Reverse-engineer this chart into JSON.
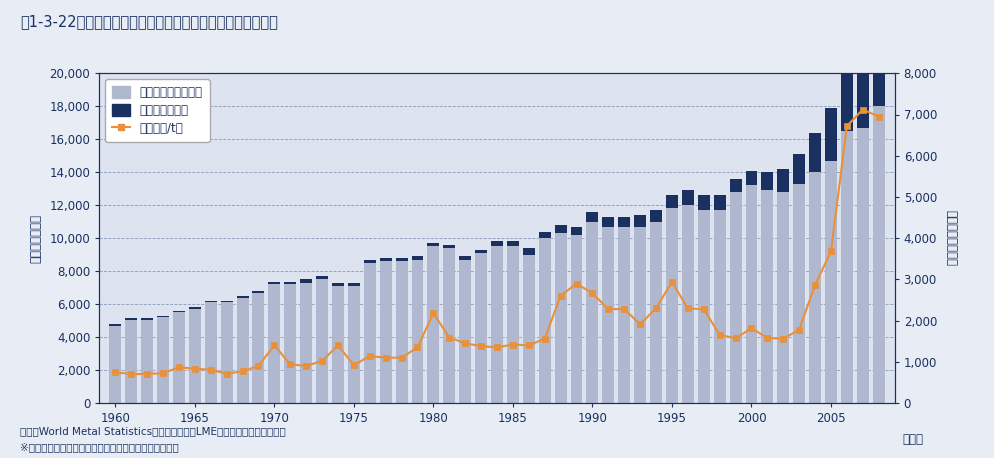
{
  "title": "図1-3-22　世界の銅（地金）消費量と銅価格（ドル）の推移",
  "years": [
    1960,
    1961,
    1962,
    1963,
    1964,
    1965,
    1966,
    1967,
    1968,
    1969,
    1970,
    1971,
    1972,
    1973,
    1974,
    1975,
    1976,
    1977,
    1978,
    1979,
    1980,
    1981,
    1982,
    1983,
    1984,
    1985,
    1986,
    1987,
    1988,
    1989,
    1990,
    1991,
    1992,
    1993,
    1994,
    1995,
    1996,
    1997,
    1998,
    1999,
    2000,
    2001,
    2002,
    2003,
    2004,
    2005,
    2006,
    2007,
    2008
  ],
  "consumption_ex_china": [
    4700,
    5050,
    5050,
    5200,
    5500,
    5700,
    6100,
    6100,
    6400,
    6700,
    7200,
    7200,
    7300,
    7500,
    7100,
    7100,
    8500,
    8600,
    8600,
    8700,
    9500,
    9400,
    8700,
    9100,
    9500,
    9500,
    9000,
    10000,
    10300,
    10200,
    11000,
    10700,
    10700,
    10700,
    11000,
    11800,
    12000,
    11700,
    11700,
    12800,
    13200,
    12900,
    12800,
    13300,
    14000,
    14700,
    16500,
    16700,
    18000
  ],
  "consumption_china": [
    100,
    100,
    100,
    100,
    100,
    100,
    100,
    100,
    100,
    100,
    150,
    150,
    200,
    200,
    200,
    200,
    200,
    200,
    200,
    200,
    200,
    200,
    200,
    200,
    300,
    350,
    400,
    400,
    500,
    500,
    600,
    600,
    600,
    700,
    700,
    800,
    900,
    900,
    900,
    800,
    900,
    1100,
    1400,
    1800,
    2400,
    3200,
    3700,
    4800,
    5000
  ],
  "price": [
    750,
    700,
    710,
    720,
    870,
    830,
    810,
    710,
    770,
    900,
    1400,
    940,
    900,
    1020,
    1400,
    920,
    1140,
    1100,
    1100,
    1350,
    2180,
    1590,
    1450,
    1380,
    1350,
    1420,
    1400,
    1560,
    2600,
    2900,
    2660,
    2280,
    2280,
    1910,
    2300,
    2935,
    2295,
    2275,
    1655,
    1570,
    1815,
    1580,
    1560,
    1780,
    2865,
    3680,
    6720,
    7120,
    6950
  ],
  "bar_color_ex_china": "#b0b8d0",
  "bar_color_china": "#1a3060",
  "line_color": "#e8903a",
  "marker_color": "#e8903a",
  "background_color": "#e8edf5",
  "plot_bg_color": "#dde4f0",
  "grid_color": "#7788aa",
  "ylabel_left": "（単位：千ｔ）",
  "ylabel_right": "（単位：＄／ｔ）",
  "xlabel": "（年）",
  "legend_ex_china": "消費量（中国以外）",
  "legend_china": "消費量（中国）",
  "legend_price": "価格（＄/t）",
  "ylim_left": [
    0,
    20000
  ],
  "ylim_right": [
    0,
    8000
  ],
  "yticks_left": [
    0,
    2000,
    4000,
    6000,
    8000,
    10000,
    12000,
    14000,
    16000,
    18000,
    20000
  ],
  "yticks_right": [
    0,
    1000,
    2000,
    3000,
    4000,
    5000,
    6000,
    7000,
    8000
  ],
  "xticks": [
    1960,
    1965,
    1970,
    1975,
    1980,
    1985,
    1990,
    1995,
    2000,
    2005
  ],
  "source_text": "出典：World Metal Statistics（銅消費量）、LMEセツルメント（銅価格）",
  "note_text": "※　銅価格は、ロンドン市場における年平均の実勢価格",
  "title_color": "#1a3060",
  "axis_color": "#1a3060",
  "text_color": "#1a3060"
}
